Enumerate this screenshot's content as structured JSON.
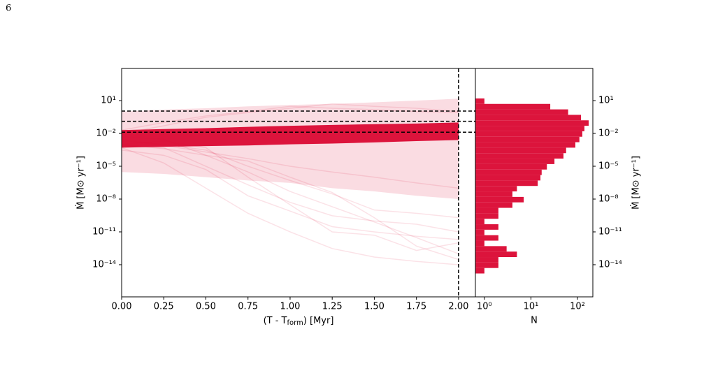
{
  "page_number": "6",
  "chart_data": [
    {
      "type": "line",
      "xlabel": "(T - T",
      "xlabel_sub": "form",
      "xlabel_end": ") [Myr]",
      "ylabel": "Ṁ [M⊙ yr⁻¹]",
      "ylog": true,
      "xlim": [
        0,
        2.1
      ],
      "ylim": [
        1.15e-17,
        8700
      ],
      "xticks": [
        {
          "value": 0,
          "label": "0.00"
        },
        {
          "value": 0.25,
          "label": "0.25"
        },
        {
          "value": 0.5,
          "label": "0.50"
        },
        {
          "value": 0.75,
          "label": "0.75"
        },
        {
          "value": 1,
          "label": "1.00"
        },
        {
          "value": 1.25,
          "label": "1.25"
        },
        {
          "value": 1.5,
          "label": "1.50"
        },
        {
          "value": 1.75,
          "label": "1.75"
        },
        {
          "value": 2,
          "label": "2.00"
        }
      ],
      "yticks": [
        {
          "value": 10,
          "label": "10¹"
        },
        {
          "value": 0.01,
          "label": "10⁻²"
        },
        {
          "value": 1e-05,
          "label": "10⁻⁵"
        },
        {
          "value": 1e-08,
          "label": "10⁻⁸"
        },
        {
          "value": 1e-11,
          "label": "10⁻¹¹"
        },
        {
          "value": 1e-14,
          "label": "10⁻¹⁴"
        }
      ],
      "x": [
        0,
        0.25,
        0.5,
        0.75,
        1,
        1.25,
        1.5,
        1.75,
        2
      ],
      "bands": [
        {
          "color": "#dc143c",
          "opacity": 0.15,
          "upper": [
            1,
            1.5,
            2,
            3,
            4,
            5,
            7,
            10,
            15
          ],
          "lower": [
            3e-06,
            2e-06,
            1e-06,
            5e-07,
            3e-07,
            1e-07,
            5e-08,
            2e-08,
            1e-08
          ]
        },
        {
          "color": "#dc143c",
          "opacity": 1,
          "upper": [
            0.02,
            0.025,
            0.03,
            0.04,
            0.05,
            0.06,
            0.07,
            0.08,
            0.1
          ],
          "lower": [
            0.0005,
            0.0006,
            0.0007,
            0.0008,
            0.001,
            0.0012,
            0.0015,
            0.002,
            0.0025
          ]
        }
      ],
      "line_opacity": 0.12,
      "series": [
        {
          "color": "#dc143c",
          "values": [
            0.001,
            0.002,
            0.0005,
            1e-06,
            3e-09,
            1e-11,
            5e-12,
            2e-13,
            1e-12
          ]
        },
        {
          "color": "#dc143c",
          "values": [
            0.0003,
            0.0001,
            5e-06,
            2e-08,
            8e-10,
            3e-11,
            1e-11,
            4e-12,
            2e-12
          ]
        },
        {
          "color": "#dc143c",
          "values": [
            0.005,
            0.003,
            0.0001,
            3e-06,
            5e-08,
            2e-09,
            8e-11,
            3e-12,
            1e-13
          ]
        },
        {
          "color": "#dc143c",
          "values": [
            0.01,
            0.05,
            0.3,
            0.8,
            2,
            5,
            3,
            2,
            1
          ]
        },
        {
          "color": "#dc143c",
          "values": [
            0.002,
            0.001,
            0.0003,
            1e-05,
            5e-07,
            3e-08,
            1e-09,
            5e-10,
            2e-10
          ]
        },
        {
          "color": "#dc143c",
          "values": [
            0.0008,
            0.0005,
            1e-05,
            2e-07,
            5e-09,
            3e-10,
            1e-10,
            5e-11,
            1e-11
          ]
        },
        {
          "color": "#dc143c",
          "values": [
            0.003,
            0.0008,
            0.0002,
            5e-05,
            1e-05,
            3e-06,
            1e-06,
            3e-07,
            1e-07
          ]
        },
        {
          "color": "#dc143c",
          "values": [
            0.001,
            0.0004,
            0.0001,
            3e-05,
            1e-06,
            4e-08,
            2e-10,
            5e-13,
            3e-14
          ]
        },
        {
          "color": "#dc143c",
          "values": [
            0.02,
            0.1,
            0.4,
            1,
            3,
            2,
            1.5,
            1,
            0.8
          ]
        },
        {
          "color": "#dc143c",
          "values": [
            0.0005,
            2e-05,
            1e-07,
            5e-10,
            1e-11,
            3e-13,
            5e-14,
            2e-14,
            1e-14
          ]
        }
      ],
      "hlines": [
        1.1,
        0.13,
        0.013
      ],
      "vlines": [
        2
      ]
    },
    {
      "type": "histogram",
      "orientation": "horizontal",
      "xlabel": "N",
      "ylabel": "Ṁ [M⊙ yr⁻¹]",
      "color": "#dc143c",
      "xlog": true,
      "ylog": true,
      "xlim": [
        0.64,
        214
      ],
      "ylim": [
        1.15e-17,
        8700
      ],
      "xticks": [
        {
          "value": 1,
          "label": "10⁰"
        },
        {
          "value": 10,
          "label": "10¹"
        },
        {
          "value": 100,
          "label": "10²"
        }
      ],
      "yticks": [
        {
          "value": 10,
          "label": "10¹"
        },
        {
          "value": 0.01,
          "label": "10⁻²"
        },
        {
          "value": 1e-05,
          "label": "10⁻⁵"
        },
        {
          "value": 1e-08,
          "label": "10⁻⁸"
        },
        {
          "value": 1e-11,
          "label": "10⁻¹¹"
        },
        {
          "value": 1e-14,
          "label": "10⁻¹⁴"
        }
      ],
      "bins": [
        15.8,
        5,
        1.58,
        0.5,
        0.158,
        0.05,
        0.0158,
        0.005,
        0.00158,
        0.0005,
        0.000158,
        5e-05,
        1.58e-05,
        5e-06,
        1.58e-06,
        5e-07,
        1.58e-07,
        5e-08,
        1.58e-08,
        5e-09,
        1.58e-09,
        5e-10,
        1.58e-10,
        5e-11,
        1.58e-11,
        5e-12,
        1.58e-12,
        5e-13,
        1.58e-13,
        5e-14,
        1.58e-14,
        5e-15,
        1.58e-15
      ],
      "counts": [
        1,
        26,
        63,
        119,
        174,
        141,
        127,
        110,
        90,
        57,
        50,
        32,
        22,
        17,
        16,
        14,
        5,
        4,
        7,
        4,
        2,
        2,
        1,
        2,
        1,
        2,
        1,
        3,
        5,
        2,
        2,
        1
      ]
    }
  ]
}
